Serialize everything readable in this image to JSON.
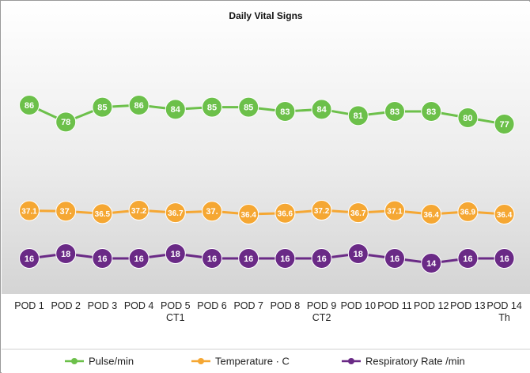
{
  "chart_data": {
    "type": "line",
    "title": "Daily Vital Signs",
    "xlabel": "",
    "ylabel": "",
    "categories": [
      [
        "POD 1"
      ],
      [
        "POD 2"
      ],
      [
        "POD 3"
      ],
      [
        "POD 4"
      ],
      [
        "POD 5",
        "CT1"
      ],
      [
        "POD 6"
      ],
      [
        "POD 7"
      ],
      [
        "POD 8"
      ],
      [
        "POD 9",
        "CT2"
      ],
      [
        "POD 10"
      ],
      [
        "POD 11"
      ],
      [
        "POD 12"
      ],
      [
        "POD 13"
      ],
      [
        "POD 14",
        "Th"
      ]
    ],
    "grid": false,
    "legend_position": "bottom",
    "series": [
      {
        "name": "Pulse/min",
        "color": "#6cc04a",
        "values": [
          86,
          78,
          85,
          86,
          84,
          85,
          85,
          83,
          84,
          81,
          83,
          83,
          80,
          77
        ],
        "labels": [
          "86",
          "78",
          "85",
          "86",
          "84",
          "85",
          "85",
          "83",
          "84",
          "81",
          "83",
          "83",
          "80",
          "77"
        ]
      },
      {
        "name": "Temperature · C",
        "color": "#f5a733",
        "values": [
          37.1,
          37.0,
          36.5,
          37.2,
          36.7,
          37.0,
          36.4,
          36.6,
          37.2,
          36.7,
          37.1,
          36.4,
          36.9,
          36.4
        ],
        "labels": [
          "37.1",
          "37.",
          "36.5",
          "37.2",
          "36.7",
          "37.",
          "36.4",
          "36.6",
          "37.2",
          "36.7",
          "37.1",
          "36.4",
          "36.9",
          "36.4"
        ]
      },
      {
        "name": "Respiratory Rate /min",
        "color": "#6a2a86",
        "values": [
          16,
          18,
          16,
          16,
          18,
          16,
          16,
          16,
          16,
          18,
          16,
          14,
          16,
          16
        ],
        "labels": [
          "16",
          "18",
          "16",
          "16",
          "18",
          "16",
          "16",
          "16",
          "16",
          "18",
          "16",
          "14",
          "16",
          "16"
        ]
      }
    ]
  }
}
